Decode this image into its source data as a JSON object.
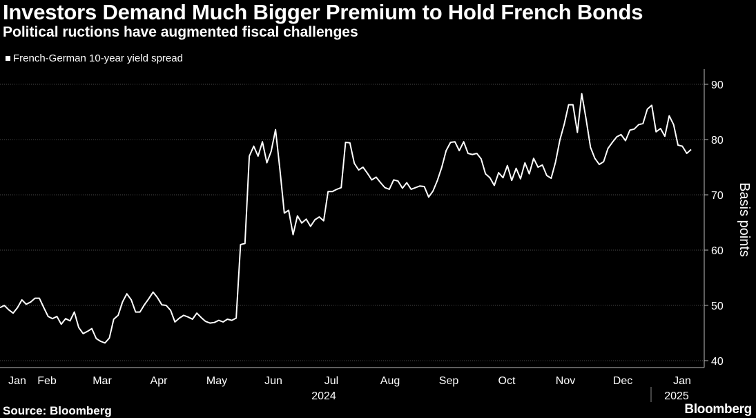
{
  "chart_data": {
    "type": "line",
    "title": "Investors Demand Much Bigger Premium to Hold French Bonds",
    "subtitle": "Political ructions have augmented fiscal challenges",
    "ylabel": "Basis points",
    "ylim": [
      40,
      90
    ],
    "yticks": [
      40,
      50,
      60,
      70,
      80,
      90
    ],
    "xlabel_months": [
      "Jan",
      "Feb",
      "Mar",
      "Apr",
      "May",
      "Jun",
      "Jul",
      "Aug",
      "Sep",
      "Oct",
      "Nov",
      "Dec",
      "Jan"
    ],
    "year_labels": [
      "2024",
      "2025"
    ],
    "series": [
      {
        "name": "French-German 10-year yield spread",
        "color": "#ffffff",
        "values": [
          49.6,
          50.0,
          49.2,
          48.6,
          49.6,
          51.0,
          50.2,
          50.6,
          51.3,
          51.3,
          49.6,
          48.0,
          47.6,
          48.0,
          46.6,
          47.6,
          47.2,
          48.8,
          46.0,
          44.9,
          45.3,
          45.8,
          44.0,
          43.5,
          43.2,
          44.1,
          47.5,
          48.2,
          50.6,
          52.1,
          51.0,
          48.8,
          48.8,
          50.1,
          51.2,
          52.4,
          51.4,
          50.1,
          50.0,
          49.1,
          47.0,
          47.7,
          48.2,
          47.9,
          47.5,
          48.6,
          47.8,
          47.1,
          46.8,
          46.9,
          47.3,
          47.0,
          47.5,
          47.3,
          47.7,
          61.0,
          61.2,
          77.0,
          78.8,
          77.0,
          79.6,
          75.8,
          77.9,
          81.8,
          74.5,
          66.7,
          67.2,
          62.8,
          66.2,
          64.9,
          65.6,
          64.3,
          65.5,
          66.0,
          65.3,
          70.6,
          70.6,
          71.0,
          71.3,
          79.5,
          79.4,
          75.7,
          74.5,
          75.0,
          73.9,
          72.7,
          73.2,
          72.2,
          71.3,
          71.0,
          72.7,
          72.5,
          71.2,
          72.2,
          71.0,
          71.3,
          71.6,
          71.5,
          69.6,
          70.7,
          72.6,
          75.0,
          78.0,
          79.5,
          79.6,
          78.0,
          79.6,
          77.5,
          77.3,
          77.5,
          76.5,
          73.8,
          73.1,
          71.7,
          74.0,
          73.1,
          75.3,
          72.6,
          74.8,
          72.9,
          75.8,
          73.8,
          76.6,
          75.0,
          75.4,
          73.5,
          73.0,
          75.9,
          79.9,
          82.8,
          86.3,
          86.3,
          81.3,
          88.3,
          83.7,
          78.6,
          76.6,
          75.5,
          76.0,
          78.4,
          79.5,
          80.5,
          80.9,
          79.8,
          81.7,
          81.9,
          82.7,
          82.9,
          85.5,
          86.2,
          81.4,
          82.0,
          80.6,
          84.3,
          82.7,
          79.0,
          78.8,
          77.5,
          78.2
        ]
      }
    ],
    "source": "Source: Bloomberg",
    "brand": "Bloomberg"
  }
}
